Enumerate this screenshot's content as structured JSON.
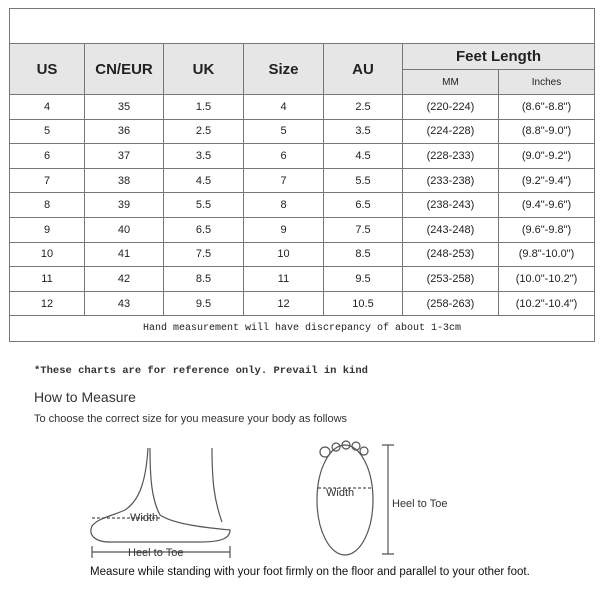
{
  "table": {
    "headers": [
      "US",
      "CN/EUR",
      "UK",
      "Size",
      "AU"
    ],
    "group_header": "Feet Length",
    "sub_headers": [
      "MM",
      "Inches"
    ],
    "rows": [
      [
        "4",
        "35",
        "1.5",
        "4",
        "2.5",
        "(220-224)",
        "(8.6\"-8.8\")"
      ],
      [
        "5",
        "36",
        "2.5",
        "5",
        "3.5",
        "(224-228)",
        "(8.8\"-9.0\")"
      ],
      [
        "6",
        "37",
        "3.5",
        "6",
        "4.5",
        "(228-233)",
        "(9.0\"-9.2\")"
      ],
      [
        "7",
        "38",
        "4.5",
        "7",
        "5.5",
        "(233-238)",
        "(9.2\"-9.4\")"
      ],
      [
        "8",
        "39",
        "5.5",
        "8",
        "6.5",
        "(238-243)",
        "(9.4\"-9.6\")"
      ],
      [
        "9",
        "40",
        "6.5",
        "9",
        "7.5",
        "(243-248)",
        "(9.6\"-9.8\")"
      ],
      [
        "10",
        "41",
        "7.5",
        "10",
        "8.5",
        "(248-253)",
        "(9.8\"-10.0\")"
      ],
      [
        "11",
        "42",
        "8.5",
        "11",
        "9.5",
        "(253-258)",
        "(10.0\"-10.2\")"
      ],
      [
        "12",
        "43",
        "9.5",
        "12",
        "10.5",
        "(258-263)",
        "(10.2\"-10.4\")"
      ]
    ],
    "note": "Hand measurement will have discrepancy of about 1-3cm"
  },
  "reference_note": "*These charts are for reference only. Prevail in kind",
  "how_to": {
    "title": "How to Measure",
    "subtitle": "To choose the correct size for you measure your body as follows"
  },
  "diagram": {
    "width_label": "Width",
    "heel_to_toe_label": "Heel to Toe",
    "width_label_2": "Width",
    "heel_to_toe_label_2": "Heel to Toe"
  },
  "instruction": "Measure while standing with your foot firmly on the floor and parallel to your other foot."
}
